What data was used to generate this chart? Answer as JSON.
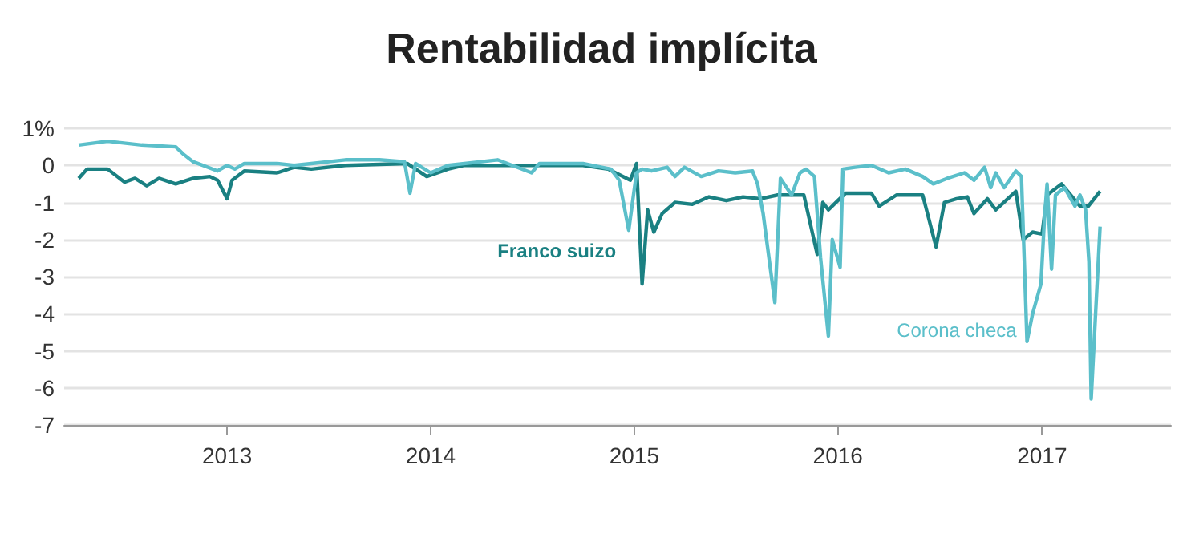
{
  "chart_data": {
    "type": "line",
    "title": "Rentabilidad implícita",
    "xlim": [
      "2012-03-15",
      "2017-08-20"
    ],
    "xticks": [
      "2013",
      "2014",
      "2015",
      "2016",
      "2017"
    ],
    "ylim": [
      -7,
      1
    ],
    "yticks": [
      {
        "value": 1,
        "label": "1%"
      },
      0,
      -1,
      -2,
      -3,
      -4,
      -5,
      -6,
      -7
    ],
    "grid": "y",
    "legend": false,
    "marker": "none",
    "line_style": "solid",
    "series": [
      {
        "name": "Franco suizo",
        "color": "#1a8082",
        "x": [
          "2012-04-10",
          "2012-04-25",
          "2012-06-01",
          "2012-07-01",
          "2012-07-20",
          "2012-08-10",
          "2012-09-01",
          "2012-10-01",
          "2012-11-01",
          "2012-12-01",
          "2012-12-15",
          "2013-01-01",
          "2013-01-10",
          "2013-02-01",
          "2013-04-01",
          "2013-05-01",
          "2013-06-01",
          "2013-08-01",
          "2013-11-20",
          "2013-12-25",
          "2014-02-01",
          "2014-03-01",
          "2014-06-01",
          "2014-10-01",
          "2014-11-15",
          "2014-12-25",
          "2015-01-05",
          "2015-01-15",
          "2015-01-25",
          "2015-02-05",
          "2015-02-20",
          "2015-03-15",
          "2015-04-15",
          "2015-05-15",
          "2015-06-15",
          "2015-07-15",
          "2015-08-15",
          "2015-09-15",
          "2015-11-01",
          "2015-11-25",
          "2015-12-05",
          "2015-12-15",
          "2016-01-01",
          "2016-01-15",
          "2016-03-01",
          "2016-03-15",
          "2016-04-15",
          "2016-06-01",
          "2016-06-25",
          "2016-07-10",
          "2016-08-01",
          "2016-08-20",
          "2016-09-01",
          "2016-09-25",
          "2016-10-10",
          "2016-11-15",
          "2016-11-28",
          "2016-12-15",
          "2017-01-01",
          "2017-01-10",
          "2017-02-05",
          "2017-03-10",
          "2017-03-25",
          "2017-04-15"
        ],
        "values": [
          -0.35,
          -0.1,
          -0.1,
          -0.45,
          -0.35,
          -0.55,
          -0.35,
          -0.5,
          -0.35,
          -0.3,
          -0.4,
          -0.9,
          -0.4,
          -0.15,
          -0.2,
          -0.05,
          -0.1,
          0,
          0.05,
          -0.3,
          -0.1,
          0,
          0,
          0,
          -0.1,
          -0.4,
          0.05,
          -3.2,
          -1.2,
          -1.8,
          -1.3,
          -1.0,
          -1.05,
          -0.85,
          -0.95,
          -0.85,
          -0.9,
          -0.8,
          -0.8,
          -2.4,
          -1.0,
          -1.2,
          -0.95,
          -0.75,
          -0.75,
          -1.1,
          -0.8,
          -0.8,
          -2.2,
          -1.0,
          -0.9,
          -0.85,
          -1.3,
          -0.9,
          -1.2,
          -0.7,
          -2.0,
          -1.8,
          -1.85,
          -0.8,
          -0.5,
          -1.1,
          -1.1,
          -0.7
        ]
      },
      {
        "name": "Corona checa",
        "color": "#5bbfca",
        "x": [
          "2012-04-10",
          "2012-06-01",
          "2012-08-01",
          "2012-10-01",
          "2012-10-15",
          "2012-11-01",
          "2012-12-15",
          "2013-01-01",
          "2013-01-15",
          "2013-02-01",
          "2013-04-01",
          "2013-05-01",
          "2013-06-01",
          "2013-08-01",
          "2013-10-01",
          "2013-11-15",
          "2013-11-25",
          "2013-12-05",
          "2014-01-01",
          "2014-02-01",
          "2014-05-01",
          "2014-07-01",
          "2014-07-15",
          "2014-10-01",
          "2014-11-20",
          "2014-12-05",
          "2014-12-22",
          "2015-01-05",
          "2015-01-15",
          "2015-02-01",
          "2015-03-01",
          "2015-03-15",
          "2015-04-01",
          "2015-05-01",
          "2015-06-01",
          "2015-07-01",
          "2015-08-01",
          "2015-08-10",
          "2015-08-20",
          "2015-09-10",
          "2015-09-20",
          "2015-10-10",
          "2015-10-25",
          "2015-11-05",
          "2015-11-20",
          "2015-12-01",
          "2015-12-15",
          "2015-12-22",
          "2016-01-05",
          "2016-01-10",
          "2016-02-01",
          "2016-03-01",
          "2016-04-01",
          "2016-05-01",
          "2016-06-01",
          "2016-06-20",
          "2016-07-15",
          "2016-08-15",
          "2016-09-01",
          "2016-09-20",
          "2016-10-01",
          "2016-10-10",
          "2016-10-25",
          "2016-11-15",
          "2016-11-25",
          "2016-12-05",
          "2016-12-15",
          "2016-12-30",
          "2017-01-05",
          "2017-01-10",
          "2017-01-18",
          "2017-01-25",
          "2017-02-10",
          "2017-03-01",
          "2017-03-10",
          "2017-03-20",
          "2017-03-26",
          "2017-03-30",
          "2017-04-15"
        ],
        "values": [
          0.55,
          0.65,
          0.55,
          0.5,
          0.3,
          0.1,
          -0.15,
          0,
          -0.1,
          0.05,
          0.05,
          0,
          0.05,
          0.15,
          0.15,
          0.1,
          -0.75,
          0.05,
          -0.2,
          0,
          0.15,
          -0.2,
          0.05,
          0.05,
          -0.1,
          -0.4,
          -1.75,
          -0.2,
          -0.1,
          -0.15,
          -0.05,
          -0.3,
          -0.05,
          -0.3,
          -0.15,
          -0.2,
          -0.15,
          -0.5,
          -1.3,
          -3.7,
          -0.35,
          -0.8,
          -0.2,
          -0.1,
          -0.3,
          -2.5,
          -4.6,
          -2.0,
          -2.75,
          -0.1,
          -0.05,
          0,
          -0.2,
          -0.1,
          -0.3,
          -0.5,
          -0.35,
          -0.2,
          -0.4,
          -0.05,
          -0.6,
          -0.2,
          -0.6,
          -0.15,
          -0.3,
          -4.75,
          -4.0,
          -3.2,
          -1.5,
          -0.5,
          -2.8,
          -0.8,
          -0.6,
          -1.1,
          -0.8,
          -1.2,
          -2.6,
          -6.3,
          -1.65
        ]
      }
    ]
  }
}
